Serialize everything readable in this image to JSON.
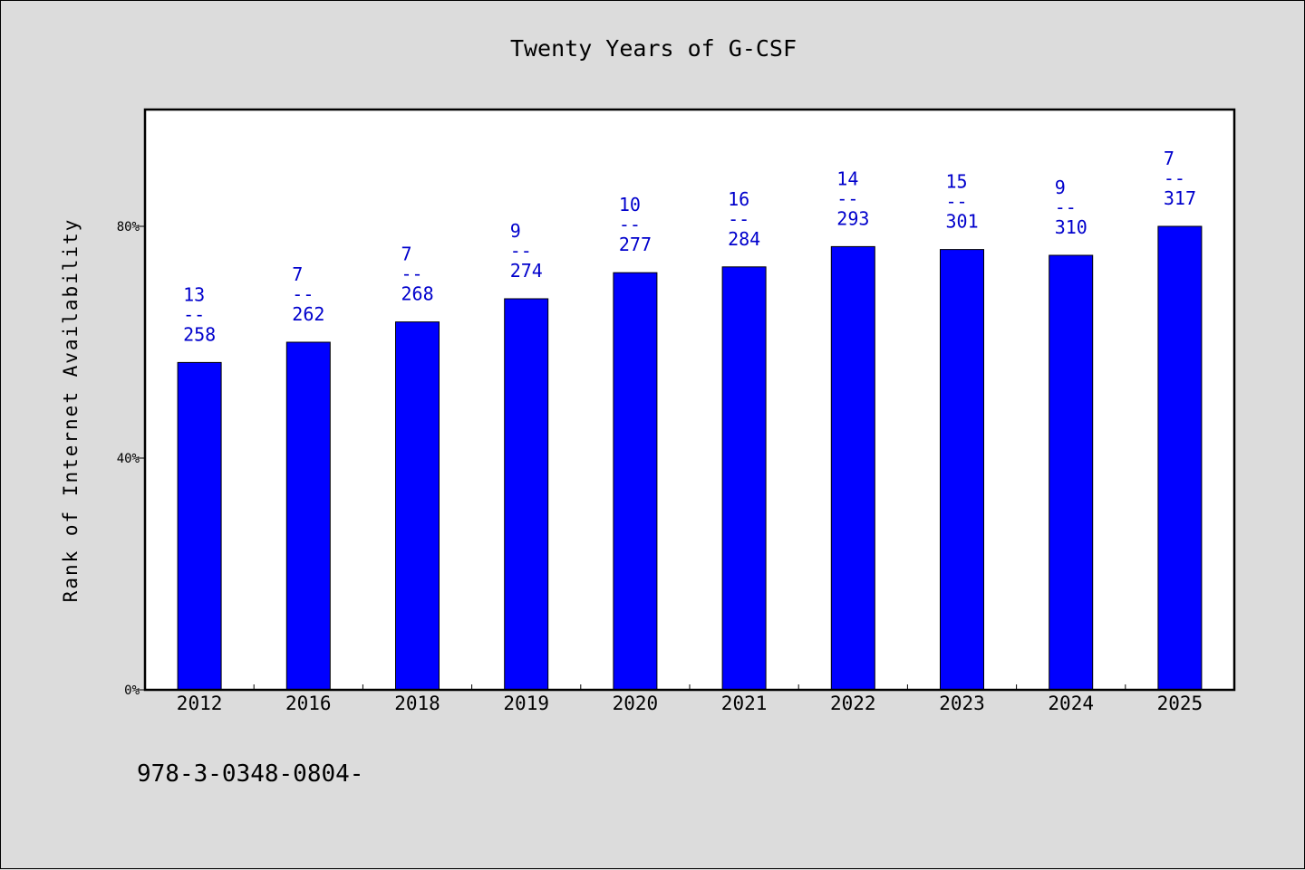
{
  "chart_data": {
    "type": "bar",
    "title": "Twenty Years of G-CSF",
    "xlabel": "",
    "ylabel": "Rank of Internet Availability",
    "categories": [
      "2012",
      "2016",
      "2018",
      "2019",
      "2020",
      "2021",
      "2022",
      "2023",
      "2024",
      "2025"
    ],
    "values": [
      56.5,
      60,
      63.5,
      67.5,
      72,
      73,
      76.5,
      76,
      75,
      80
    ],
    "ranks": [
      "13",
      "7",
      "7",
      "9",
      "10",
      "16",
      "14",
      "15",
      "9",
      "7"
    ],
    "separator": "--",
    "totals": [
      "258",
      "262",
      "268",
      "274",
      "277",
      "284",
      "293",
      "301",
      "310",
      "317"
    ],
    "ylim": [
      0,
      100
    ],
    "yticks": [
      0,
      40,
      80
    ],
    "ytick_labels": [
      "0%",
      "40%",
      "80%"
    ],
    "grid": false,
    "bar_color": "#0000ff",
    "label_color": "#0000cc"
  },
  "footer": {
    "text": "978-3-0348-0804-"
  }
}
